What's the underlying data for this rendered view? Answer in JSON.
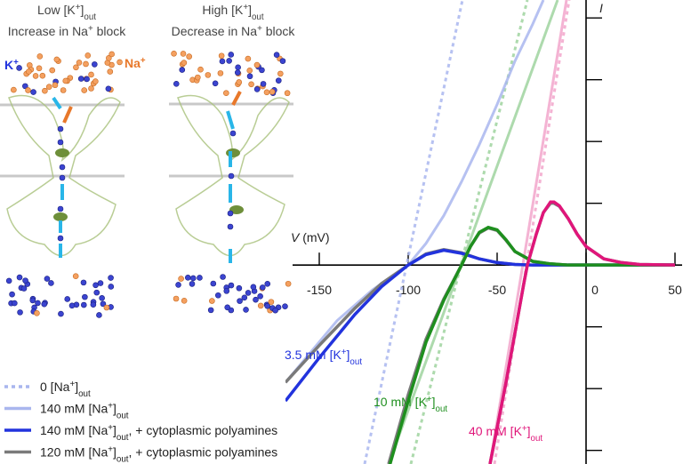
{
  "panels": [
    {
      "title": [
        {
          "t": "Low [K"
        },
        {
          "sup": "+"
        },
        {
          "t": "]"
        },
        {
          "sub": "out"
        }
      ],
      "subtitle": [
        {
          "t": "Increase in Na"
        },
        {
          "sup": "+"
        },
        {
          "t": " block"
        }
      ]
    },
    {
      "title": [
        {
          "t": "High [K"
        },
        {
          "sup": "+"
        },
        {
          "t": "]"
        },
        {
          "sub": "out"
        }
      ],
      "subtitle": [
        {
          "t": "Decrease in Na"
        },
        {
          "sup": "+"
        },
        {
          "t": " block"
        }
      ]
    }
  ],
  "ion_labels": {
    "k": [
      {
        "t": "K"
      },
      {
        "sup": "+"
      }
    ],
    "na": [
      {
        "t": "Na"
      },
      {
        "sup": "+"
      }
    ]
  },
  "chart_data": {
    "type": "line",
    "xlabel": [
      {
        "i": "V"
      },
      {
        "t": " (mV)"
      }
    ],
    "ylabel": [
      {
        "i": "I"
      }
    ],
    "xlim": [
      -169,
      54
    ],
    "ylim": [
      -3.22,
      4.29
    ],
    "xticks": [
      -150,
      -100,
      -50,
      0,
      50
    ],
    "yticks": [
      -3,
      -2,
      -1,
      0,
      1,
      2,
      3,
      4
    ],
    "legend": [
      {
        "text": [
          {
            "t": "0 [Na"
          },
          {
            "sup": "+"
          },
          {
            "t": "]"
          },
          {
            "sub": "out"
          }
        ],
        "color": "#a9b6ee",
        "dash": true
      },
      {
        "text": [
          {
            "t": "140 mM [Na"
          },
          {
            "sup": "+"
          },
          {
            "t": "]"
          },
          {
            "sub": "out"
          }
        ],
        "color": "#a9b6ee",
        "dash": false
      },
      {
        "text": [
          {
            "t": "140 mM [Na"
          },
          {
            "sup": "+"
          },
          {
            "t": "]"
          },
          {
            "sub": "out"
          },
          {
            "t": ", + cytoplasmic polyamines"
          }
        ],
        "color": "#2233dd",
        "dash": false
      },
      {
        "text": [
          {
            "t": "120 mM [Na"
          },
          {
            "sup": "+"
          },
          {
            "t": "]"
          },
          {
            "sub": "out"
          },
          {
            "t": ", + cytoplasmic polyamines"
          }
        ],
        "color": "#7a7a7a",
        "dash": false
      }
    ],
    "series": [
      {
        "label": [
          {
            "t": "3.5 mM [K"
          },
          {
            "sup": "+"
          },
          {
            "t": "]"
          },
          {
            "sub": "out"
          }
        ],
        "color": "#2233dd",
        "light": "#a9b6ee",
        "lines": [
          {
            "x": [
              -124.5,
              -69.5
            ],
            "values": [
              -3.22,
              4.29
            ]
          },
          {
            "x": [
              -169,
              -140,
              -120,
              -100,
              -90,
              -80,
              -70,
              -60,
              -50,
              -40,
              -30,
              -24
            ],
            "values": [
              -1.9,
              -0.9,
              -0.4,
              0,
              0.35,
              0.8,
              1.35,
              1.95,
              2.6,
              3.3,
              3.9,
              4.29
            ]
          },
          {
            "x": [
              -169,
              -150,
              -130,
              -115,
              -100,
              -90,
              -80,
              -70,
              -60,
              -50,
              -40,
              -30,
              -20,
              0,
              50
            ],
            "values": [
              -2.2,
              -1.5,
              -0.8,
              -0.35,
              0,
              0.17,
              0.24,
              0.19,
              0.1,
              0.04,
              0.01,
              0,
              0,
              0,
              0
            ]
          },
          {
            "x": [
              -169,
              -150,
              -130,
              -115,
              -100,
              -90,
              -80,
              -70,
              -60,
              -50,
              -40,
              -30,
              -20,
              0,
              50
            ],
            "values": [
              -1.9,
              -1.3,
              -0.7,
              -0.3,
              0,
              0.18,
              0.25,
              0.2,
              0.1,
              0.04,
              0.01,
              0,
              0,
              0,
              0
            ]
          }
        ]
      },
      {
        "label": [
          {
            "t": "10 mM  [K"
          },
          {
            "sup": "+"
          },
          {
            "t": "]"
          },
          {
            "sub": "out"
          }
        ],
        "color": "#1e8f1e",
        "light": "#9fd49f",
        "lines": [
          {
            "x": [
              -98.5,
              -33
            ],
            "values": [
              -3.22,
              4.29
            ]
          },
          {
            "x": [
              -111,
              -16
            ],
            "values": [
              -3.22,
              4.29
            ]
          },
          {
            "x": [
              -111,
              -100,
              -90,
              -80,
              -70,
              -65,
              -60,
              -55,
              -50,
              -45,
              -40,
              -30,
              -20,
              -10,
              0,
              50
            ],
            "values": [
              -3.3,
              -2.2,
              -1.25,
              -0.57,
              0,
              0.3,
              0.53,
              0.61,
              0.57,
              0.41,
              0.22,
              0.06,
              0.02,
              0,
              0,
              0
            ]
          },
          {
            "x": [
              -111,
              -100,
              -90,
              -80,
              -70,
              -65,
              -60,
              -55,
              -50,
              -45,
              -40,
              -30,
              -20,
              -10,
              0,
              50
            ],
            "values": [
              -3.22,
              -2.1,
              -1.2,
              -0.55,
              0,
              0.3,
              0.52,
              0.6,
              0.56,
              0.4,
              0.22,
              0.06,
              0.02,
              0,
              0,
              0
            ]
          }
        ]
      },
      {
        "label": [
          {
            "t": "40 mM [K"
          },
          {
            "sup": "+"
          },
          {
            "t": "]"
          },
          {
            "sub": "out"
          }
        ],
        "color": "#e0167a",
        "light": "#f2a6cb",
        "lines": [
          {
            "x": [
              -51.5,
              -9.5
            ],
            "values": [
              -3.22,
              4.29
            ]
          },
          {
            "x": [
              -54,
              -11
            ],
            "values": [
              -3.22,
              4.29
            ]
          },
          {
            "x": [
              -54,
              -45,
              -40,
              -35,
              -33,
              -28,
              -24,
              -20,
              -18,
              -15,
              -10,
              -5,
              0,
              10,
              20,
              30,
              50
            ],
            "values": [
              -3.22,
              -1.9,
              -1.1,
              -0.3,
              0,
              0.5,
              0.85,
              1.02,
              1.02,
              0.96,
              0.75,
              0.5,
              0.3,
              0.1,
              0.04,
              0.01,
              0
            ]
          },
          {
            "x": [
              -54,
              -45,
              -40,
              -35,
              -33,
              -28,
              -24,
              -20,
              -18,
              -15,
              -10,
              -5,
              0,
              10,
              20,
              30,
              50
            ],
            "values": [
              -3.22,
              -1.9,
              -1.1,
              -0.3,
              0,
              0.5,
              0.85,
              1.0,
              1.0,
              0.95,
              0.75,
              0.5,
              0.3,
              0.1,
              0.04,
              0.01,
              0
            ]
          }
        ]
      }
    ]
  }
}
